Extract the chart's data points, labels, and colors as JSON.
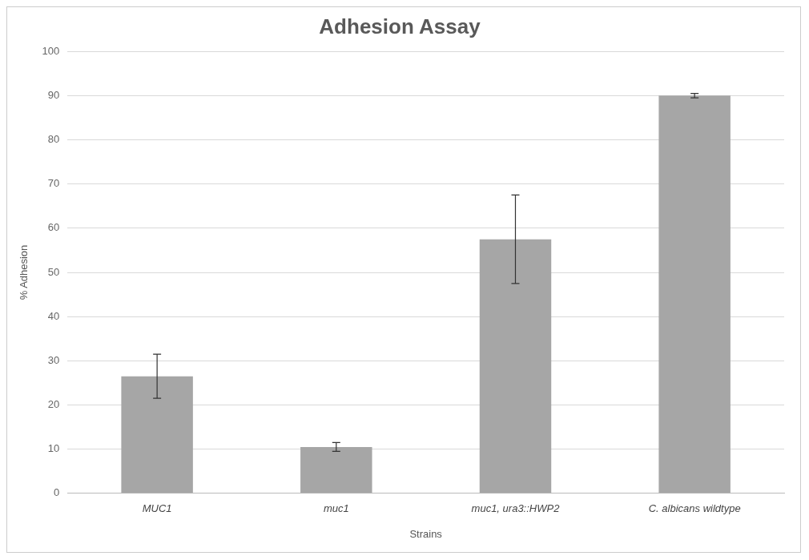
{
  "chart_data": {
    "type": "bar",
    "title": "Adhesion Assay",
    "xlabel": "Strains",
    "ylabel": "% Adhesion",
    "categories": [
      "MUC1",
      "muc1",
      "muc1, ura3::HWP2",
      "C. albicans wildtype"
    ],
    "values": [
      26.5,
      10.5,
      57.5,
      90
    ],
    "errors": [
      5,
      1,
      10,
      0.5
    ],
    "color": "#a6a6a6",
    "ylim": [
      0,
      100
    ],
    "yticks": [
      0,
      10,
      20,
      30,
      40,
      50,
      60,
      70,
      80,
      90,
      100
    ],
    "grid": "y",
    "legend": false
  }
}
